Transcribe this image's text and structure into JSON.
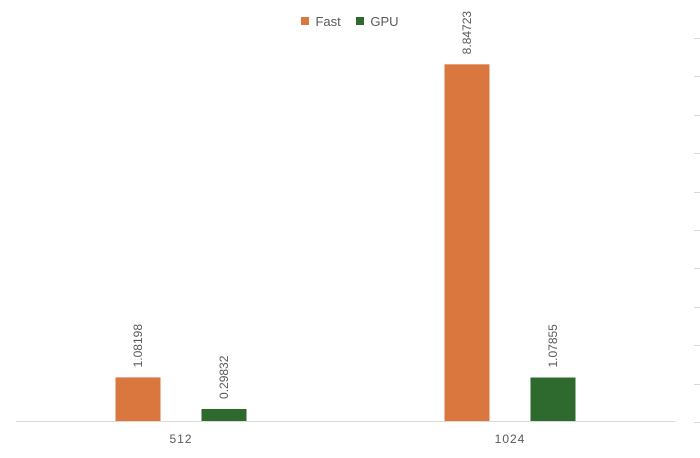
{
  "chart_data": {
    "type": "bar",
    "categories": [
      "512",
      "1024"
    ],
    "series": [
      {
        "name": "Fast",
        "color": "#D9773F",
        "values": [
          1.08198,
          8.84723
        ],
        "labels": [
          "1.08198",
          "8.84723"
        ]
      },
      {
        "name": "GPU",
        "color": "#2E6A2E",
        "values": [
          0.29832,
          1.07855
        ],
        "labels": [
          "0.29832",
          "1.07855"
        ]
      }
    ],
    "ylim": [
      0,
      9.5
    ],
    "legend_position": "top",
    "grid": false
  }
}
